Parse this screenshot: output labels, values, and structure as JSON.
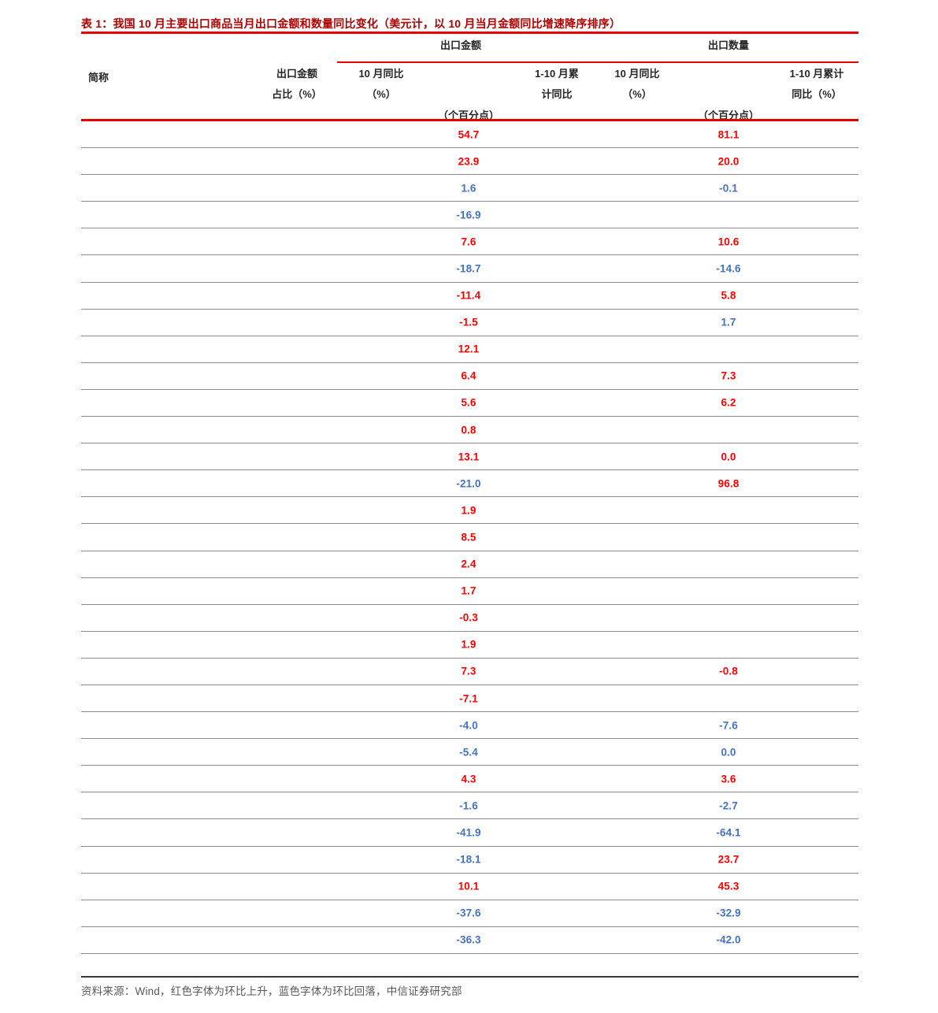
{
  "page": {
    "title": "表 1：我国 10 月主要出口商品当月出口金额和数量同比变化（美元计，以 10 月当月金额同比增速降序排序）",
    "footer": "资料来源：Wind，红色字体为环比上升，蓝色字体为环比回落，中信证券研究部"
  },
  "header": {
    "abbr": "简称",
    "share_l1": "出口金额",
    "share_l2": "占比（%）",
    "group_amount": "出口金额",
    "group_qty": "出口数量",
    "amt_oct_l1": "10 月同比",
    "amt_oct_l2": "（%）",
    "amt_pct_pts": "（个百分点）",
    "amt_cum_l1": "1-10 月累",
    "amt_cum_l2": "计同比",
    "qty_oct_l1": "10 月同比",
    "qty_oct_l2": "（%）",
    "qty_pct_pts": "（个百分点）",
    "qty_cum_l1": "1-10 月累计",
    "qty_cum_l2": "同比（%）"
  },
  "colors": {
    "rise_red": "#ff0000",
    "fall_blue": "#4472c4",
    "rule_red": "#e60000",
    "title_red": "#b00000"
  },
  "rows": [
    {
      "amount": "54.7",
      "amount_color": "red",
      "quantity": "81.1",
      "quantity_color": "red"
    },
    {
      "amount": "23.9",
      "amount_color": "red",
      "quantity": "20.0",
      "quantity_color": "red"
    },
    {
      "amount": "1.6",
      "amount_color": "blue",
      "quantity": "-0.1",
      "quantity_color": "blue"
    },
    {
      "amount": "-16.9",
      "amount_color": "blue",
      "quantity": "",
      "quantity_color": ""
    },
    {
      "amount": "7.6",
      "amount_color": "red",
      "quantity": "10.6",
      "quantity_color": "red"
    },
    {
      "amount": "-18.7",
      "amount_color": "blue",
      "quantity": "-14.6",
      "quantity_color": "blue"
    },
    {
      "amount": "-11.4",
      "amount_color": "red",
      "quantity": "5.8",
      "quantity_color": "red"
    },
    {
      "amount": "-1.5",
      "amount_color": "red",
      "quantity": "1.7",
      "quantity_color": "blue"
    },
    {
      "amount": "12.1",
      "amount_color": "red",
      "quantity": "",
      "quantity_color": ""
    },
    {
      "amount": "6.4",
      "amount_color": "red",
      "quantity": "7.3",
      "quantity_color": "red"
    },
    {
      "amount": "5.6",
      "amount_color": "red",
      "quantity": "6.2",
      "quantity_color": "red"
    },
    {
      "amount": "0.8",
      "amount_color": "red",
      "quantity": "",
      "quantity_color": ""
    },
    {
      "amount": "13.1",
      "amount_color": "red",
      "quantity": "0.0",
      "quantity_color": "red"
    },
    {
      "amount": "-21.0",
      "amount_color": "blue",
      "quantity": "96.8",
      "quantity_color": "red"
    },
    {
      "amount": "1.9",
      "amount_color": "red",
      "quantity": "",
      "quantity_color": ""
    },
    {
      "amount": "8.5",
      "amount_color": "red",
      "quantity": "",
      "quantity_color": ""
    },
    {
      "amount": "2.4",
      "amount_color": "red",
      "quantity": "",
      "quantity_color": ""
    },
    {
      "amount": "1.7",
      "amount_color": "red",
      "quantity": "",
      "quantity_color": ""
    },
    {
      "amount": "-0.3",
      "amount_color": "red",
      "quantity": "",
      "quantity_color": ""
    },
    {
      "amount": "1.9",
      "amount_color": "red",
      "quantity": "",
      "quantity_color": ""
    },
    {
      "amount": "7.3",
      "amount_color": "red",
      "quantity": "-0.8",
      "quantity_color": "red"
    },
    {
      "amount": "-7.1",
      "amount_color": "red",
      "quantity": "",
      "quantity_color": ""
    },
    {
      "amount": "-4.0",
      "amount_color": "blue",
      "quantity": "-7.6",
      "quantity_color": "blue"
    },
    {
      "amount": "-5.4",
      "amount_color": "blue",
      "quantity": "0.0",
      "quantity_color": "blue"
    },
    {
      "amount": "4.3",
      "amount_color": "red",
      "quantity": "3.6",
      "quantity_color": "red"
    },
    {
      "amount": "-1.6",
      "amount_color": "blue",
      "quantity": "-2.7",
      "quantity_color": "blue"
    },
    {
      "amount": "-41.9",
      "amount_color": "blue",
      "quantity": "-64.1",
      "quantity_color": "blue"
    },
    {
      "amount": "-18.1",
      "amount_color": "blue",
      "quantity": "23.7",
      "quantity_color": "red"
    },
    {
      "amount": "10.1",
      "amount_color": "red",
      "quantity": "45.3",
      "quantity_color": "red"
    },
    {
      "amount": "-37.6",
      "amount_color": "blue",
      "quantity": "-32.9",
      "quantity_color": "blue"
    },
    {
      "amount": "-36.3",
      "amount_color": "blue",
      "quantity": "-42.0",
      "quantity_color": "blue"
    }
  ]
}
